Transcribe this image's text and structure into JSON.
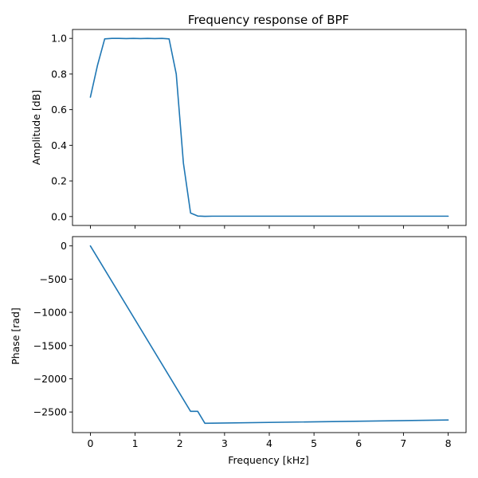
{
  "chart_data": [
    {
      "type": "line",
      "title": "Frequency response of BPF",
      "xlabel": "",
      "ylabel": "Amplitude [dB]",
      "xlim": [
        -0.4,
        8.4
      ],
      "ylim": [
        -0.05,
        1.05
      ],
      "xticks": [
        0,
        1,
        2,
        3,
        4,
        5,
        6,
        7,
        8
      ],
      "xtick_labels_visible": false,
      "yticks": [
        0.0,
        0.2,
        0.4,
        0.6,
        0.8,
        1.0
      ],
      "ytick_labels": [
        "0.0",
        "0.2",
        "0.4",
        "0.6",
        "0.8",
        "1.0"
      ],
      "grid": false,
      "color": "#1f77b4",
      "series": [
        {
          "x": [
            0,
            0.16,
            0.32,
            0.48,
            0.64,
            0.8,
            0.96,
            1.12,
            1.28,
            1.44,
            1.6,
            1.76,
            1.92,
            2.08,
            2.24,
            2.4,
            2.56,
            2.72,
            3.0,
            3.5,
            4.0,
            4.5,
            5.0,
            5.5,
            6.0,
            6.5,
            7.0,
            7.5,
            8.0
          ],
          "y": [
            0.67,
            0.85,
            0.997,
            1.0,
            1.0,
            0.999,
            1.0,
            0.999,
            1.0,
            0.999,
            1.0,
            0.997,
            0.8,
            0.3,
            0.02,
            0.003,
            0.001,
            0.002,
            0.002,
            0.002,
            0.002,
            0.002,
            0.002,
            0.002,
            0.002,
            0.002,
            0.002,
            0.002,
            0.002
          ]
        }
      ]
    },
    {
      "type": "line",
      "title": "",
      "xlabel": "Frequency [kHz]",
      "ylabel": "Phase [rad]",
      "xlim": [
        -0.4,
        8.4
      ],
      "ylim": [
        -2810,
        140
      ],
      "xticks": [
        0,
        1,
        2,
        3,
        4,
        5,
        6,
        7,
        8
      ],
      "xtick_labels": [
        "0",
        "1",
        "2",
        "3",
        "4",
        "5",
        "6",
        "7",
        "8"
      ],
      "yticks": [
        0,
        -500,
        -1000,
        -1500,
        -2000,
        -2500
      ],
      "ytick_labels": [
        "0",
        "−500",
        "−1000",
        "−1500",
        "−2000",
        "−2500"
      ],
      "grid": false,
      "color": "#1f77b4",
      "series": [
        {
          "x": [
            0,
            2.24,
            2.4,
            2.56,
            8.0
          ],
          "y": [
            0,
            -2490,
            -2490,
            -2670,
            -2620
          ]
        }
      ]
    }
  ]
}
